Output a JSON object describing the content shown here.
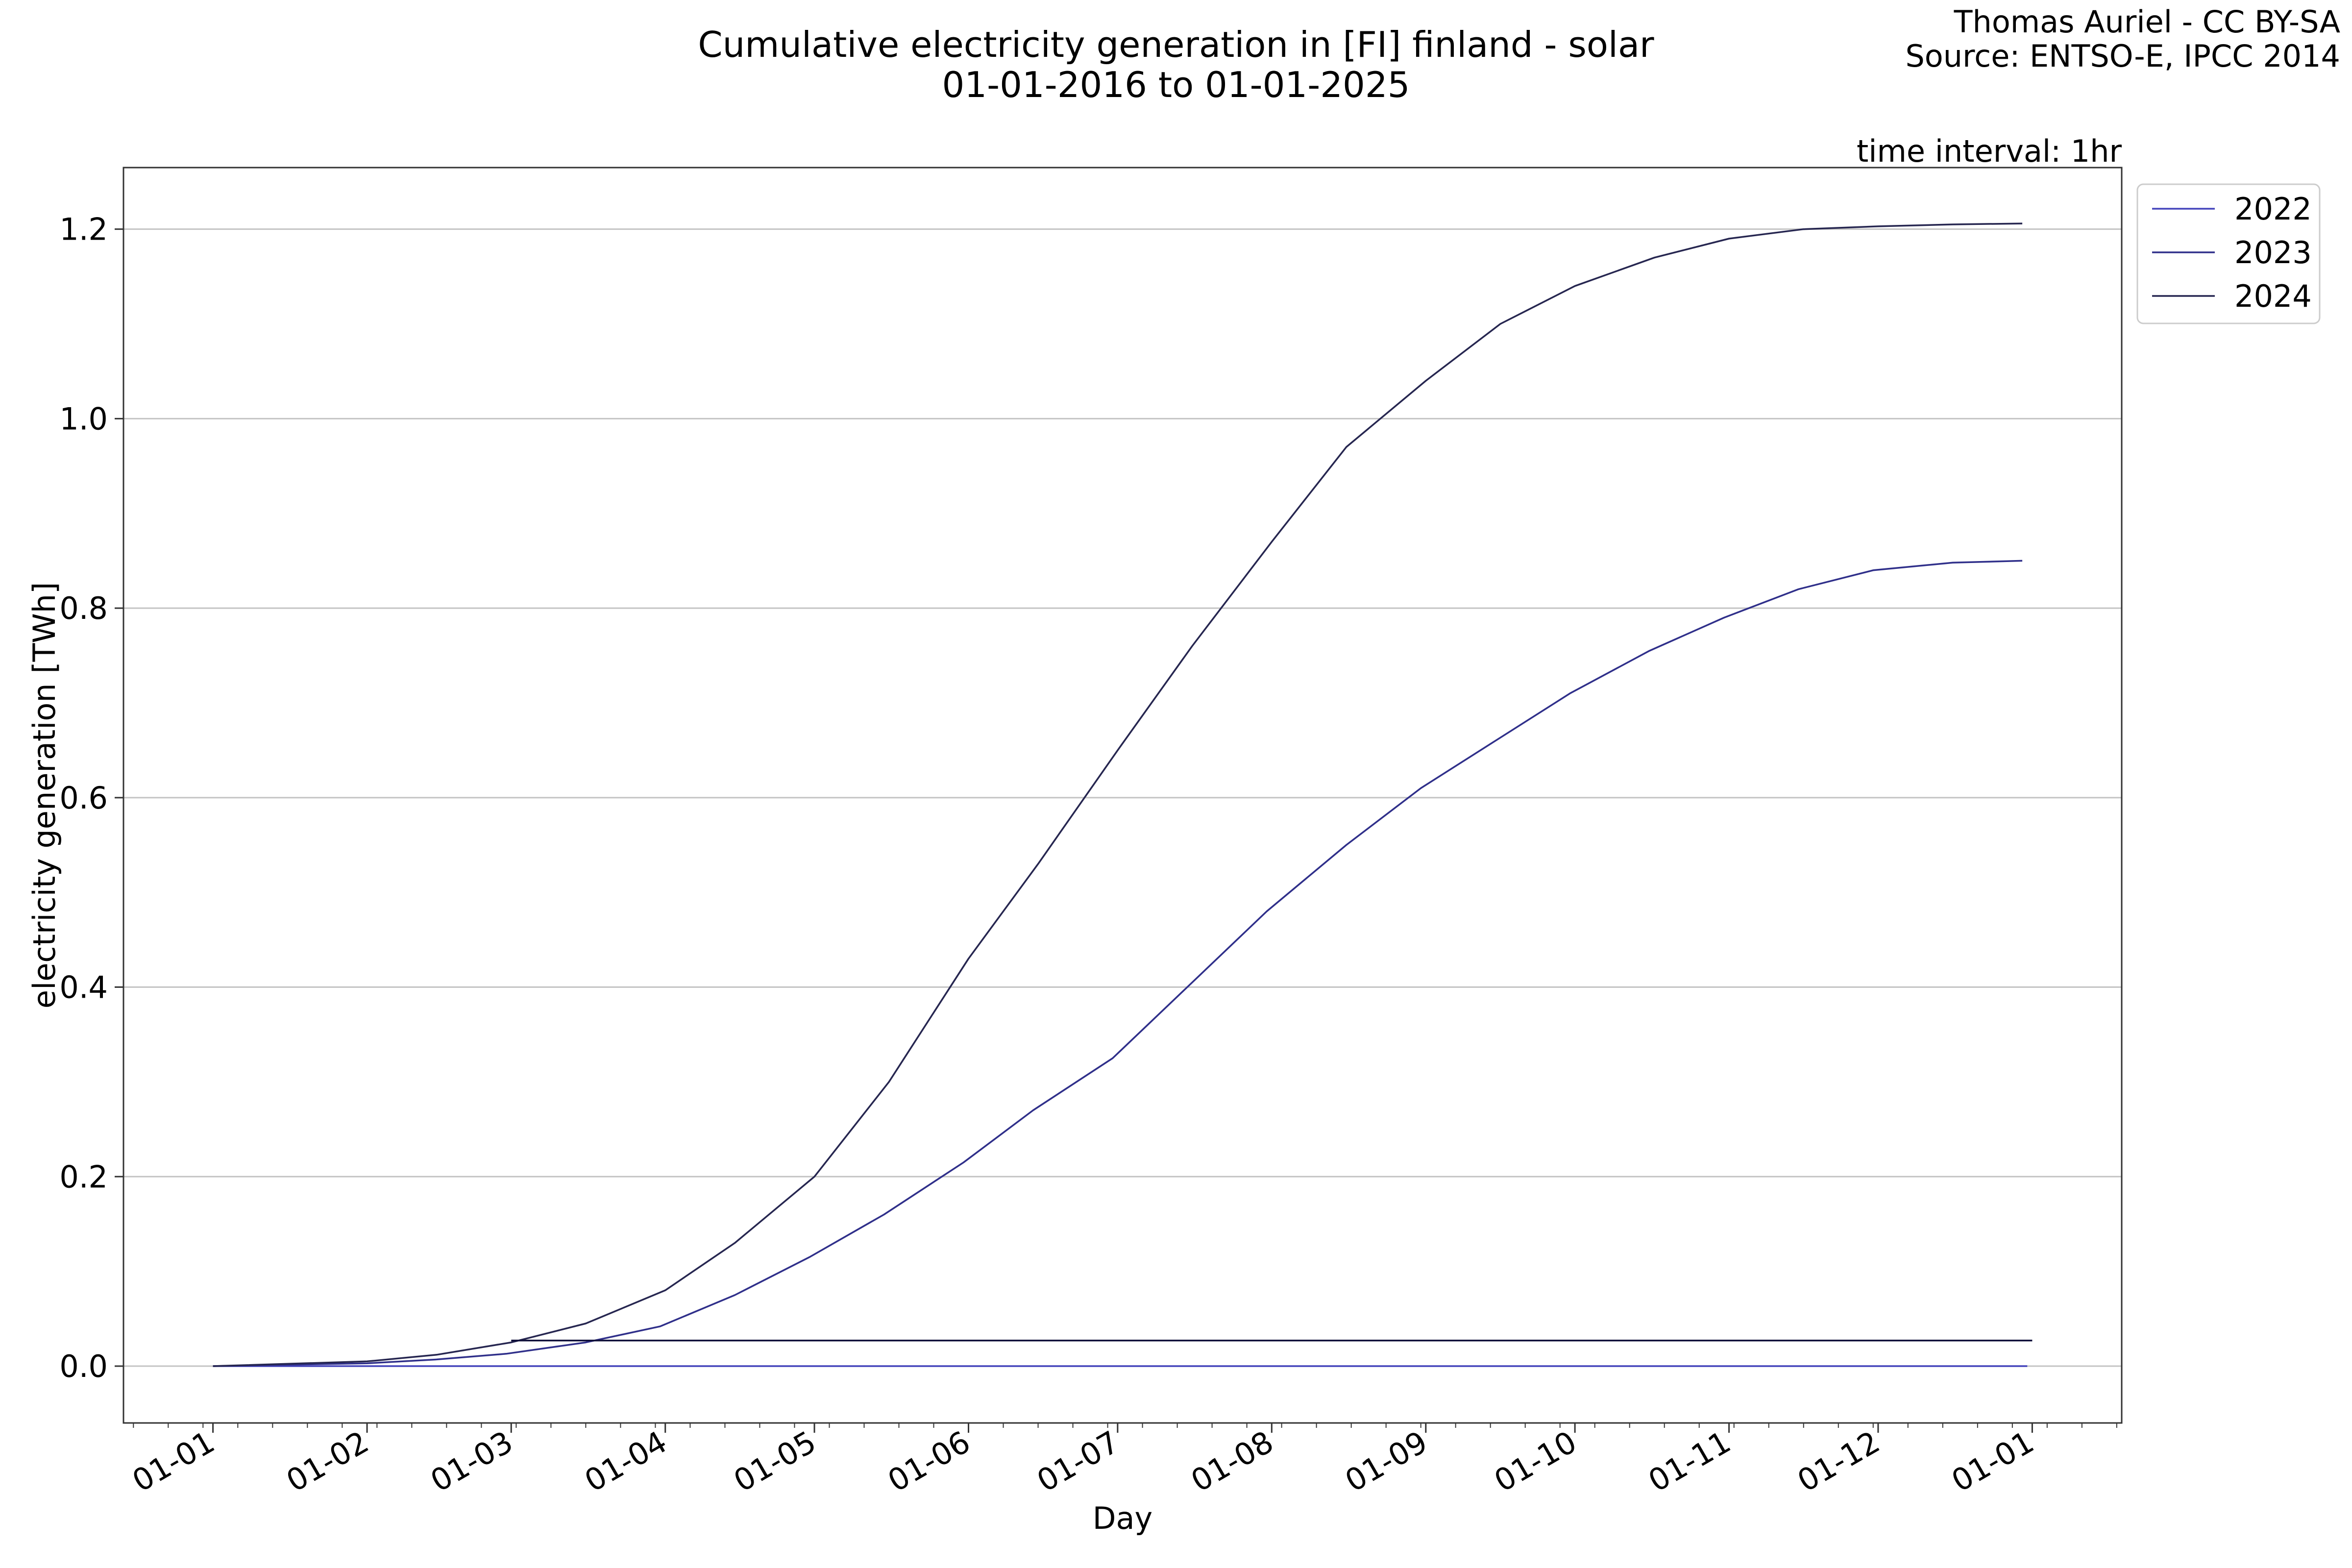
{
  "title_line1": "Cumulative electricity generation in [FI] finland - solar",
  "title_line2": "01-01-2016 to 01-01-2025",
  "credit_line1": "Thomas Auriel - CC BY-SA",
  "credit_line2": "Source: ENTSO-E, IPCC 2014",
  "time_interval": "time interval: 1hr",
  "chart_data": {
    "type": "line",
    "xlabel": "Day",
    "ylabel": "electricity generation [TWh]",
    "x_tick_labels": [
      "01-01",
      "01-02",
      "01-03",
      "01-04",
      "01-05",
      "01-06",
      "01-07",
      "01-08",
      "01-09",
      "01-10",
      "01-11",
      "01-12",
      "01-01"
    ],
    "y_ticks": [
      0.0,
      0.2,
      0.4,
      0.6,
      0.8,
      1.0,
      1.2
    ],
    "y_tick_labels": [
      "0.0",
      "0.2",
      "0.4",
      "0.6",
      "0.8",
      "1.0",
      "1.2"
    ],
    "xlim_days": [
      -18,
      384
    ],
    "ylim": [
      -0.06,
      1.265
    ],
    "grid": "horizontal",
    "legend_position": "outside-top-right",
    "series": [
      {
        "name": "2022",
        "color": "#4444bb",
        "x_day": [
          0,
          365
        ],
        "y": [
          0.0,
          0.0
        ]
      },
      {
        "name": "2023",
        "color": "#2f2f8a",
        "x_day": [
          0,
          31,
          45,
          59,
          75,
          90,
          105,
          120,
          135,
          151,
          165,
          181,
          196,
          212,
          228,
          243,
          258,
          273,
          289,
          304,
          319,
          334,
          350,
          364
        ],
        "y": [
          0.0,
          0.003,
          0.007,
          0.013,
          0.025,
          0.042,
          0.075,
          0.115,
          0.16,
          0.215,
          0.27,
          0.325,
          0.4,
          0.48,
          0.55,
          0.61,
          0.66,
          0.71,
          0.755,
          0.79,
          0.82,
          0.84,
          0.848,
          0.85
        ]
      },
      {
        "name": "2024",
        "color": "#262650",
        "x_day": [
          0,
          31,
          45,
          60,
          75,
          91,
          105,
          121,
          136,
          152,
          166,
          182,
          197,
          213,
          228,
          244,
          259,
          274,
          290,
          305,
          320,
          335,
          350,
          364
        ],
        "y": [
          0.0,
          0.005,
          0.012,
          0.025,
          0.045,
          0.08,
          0.13,
          0.2,
          0.3,
          0.43,
          0.53,
          0.65,
          0.76,
          0.87,
          0.97,
          1.04,
          1.1,
          1.14,
          1.17,
          1.19,
          1.2,
          1.203,
          1.205,
          1.206
        ]
      },
      {
        "name": "",
        "color": "#10103a",
        "x_day": [
          60,
          366
        ],
        "y": [
          0.027,
          0.027
        ]
      }
    ]
  }
}
